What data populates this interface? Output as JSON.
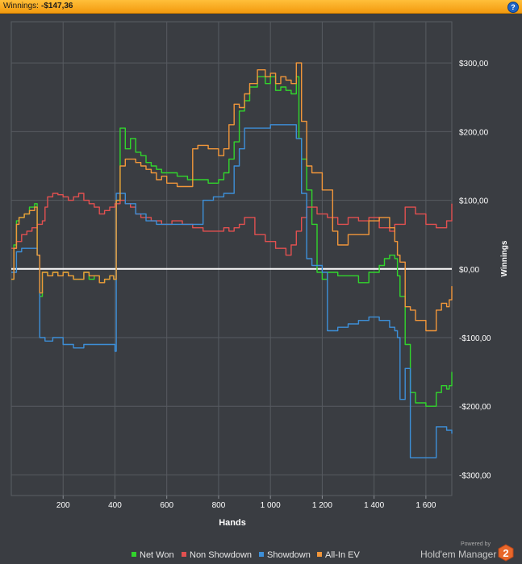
{
  "header": {
    "label": "Winnings:",
    "value": "-$147,36"
  },
  "help_icon": "question-mark-icon",
  "chart_data": {
    "type": "line",
    "xlabel": "Hands",
    "ylabel": "Winnings",
    "xlim": [
      0,
      1700
    ],
    "ylim": [
      -330,
      360
    ],
    "xticks": [
      200,
      400,
      600,
      800,
      1000,
      1200,
      1400,
      1600
    ],
    "xtick_labels": [
      "200",
      "400",
      "600",
      "800",
      "1 000",
      "1 200",
      "1 400",
      "1 600"
    ],
    "yticks": [
      300,
      200,
      100,
      0,
      -100,
      -200,
      -300
    ],
    "ytick_labels": [
      "$300,00",
      "$200,00",
      "$100,00",
      "$0,00",
      "-$100,00",
      "-$200,00",
      "-$300,00"
    ],
    "grid": true,
    "zero_line": true,
    "legend_position": "bottom",
    "series": [
      {
        "name": "Net Won",
        "color": "#31d52c",
        "x": [
          0,
          10,
          20,
          30,
          50,
          70,
          90,
          100,
          110,
          120,
          140,
          160,
          180,
          200,
          220,
          240,
          260,
          280,
          300,
          320,
          340,
          360,
          380,
          395,
          405,
          420,
          440,
          460,
          480,
          500,
          520,
          540,
          560,
          580,
          600,
          640,
          680,
          700,
          720,
          760,
          800,
          820,
          840,
          860,
          880,
          900,
          920,
          950,
          980,
          1000,
          1020,
          1040,
          1060,
          1080,
          1100,
          1110,
          1120,
          1140,
          1160,
          1180,
          1200,
          1220,
          1260,
          1300,
          1340,
          1380,
          1420,
          1440,
          1460,
          1480,
          1490,
          1500,
          1520,
          1540,
          1560,
          1600,
          1640,
          1660,
          1680,
          1690,
          1700
        ],
        "y": [
          -15,
          35,
          70,
          75,
          80,
          90,
          95,
          20,
          -40,
          -5,
          -10,
          -5,
          -10,
          -5,
          -10,
          -15,
          -15,
          -5,
          -15,
          -10,
          -20,
          -15,
          -10,
          -15,
          100,
          205,
          175,
          190,
          170,
          165,
          155,
          150,
          145,
          140,
          140,
          135,
          130,
          130,
          130,
          125,
          130,
          140,
          160,
          185,
          230,
          245,
          265,
          280,
          270,
          280,
          260,
          265,
          260,
          255,
          280,
          190,
          160,
          115,
          65,
          -5,
          -15,
          -5,
          -10,
          -10,
          -20,
          -5,
          5,
          15,
          20,
          15,
          -10,
          -40,
          -110,
          -180,
          -195,
          -200,
          -180,
          -170,
          -175,
          -170,
          -150
        ]
      },
      {
        "name": "Non Showdown",
        "color": "#e25050",
        "x": [
          0,
          20,
          40,
          60,
          80,
          100,
          120,
          130,
          140,
          160,
          180,
          200,
          220,
          240,
          260,
          280,
          300,
          320,
          340,
          360,
          380,
          400,
          420,
          440,
          460,
          480,
          500,
          540,
          580,
          620,
          660,
          700,
          740,
          780,
          820,
          840,
          860,
          880,
          900,
          940,
          980,
          1020,
          1060,
          1080,
          1100,
          1120,
          1140,
          1180,
          1220,
          1260,
          1300,
          1340,
          1380,
          1420,
          1460,
          1480,
          1520,
          1560,
          1600,
          1640,
          1680,
          1700
        ],
        "y": [
          30,
          40,
          50,
          55,
          60,
          65,
          70,
          90,
          105,
          110,
          108,
          105,
          100,
          105,
          110,
          100,
          95,
          90,
          80,
          85,
          90,
          95,
          100,
          95,
          90,
          80,
          75,
          70,
          65,
          70,
          65,
          60,
          55,
          55,
          60,
          55,
          60,
          65,
          75,
          50,
          40,
          30,
          20,
          35,
          55,
          75,
          90,
          80,
          75,
          65,
          75,
          70,
          75,
          60,
          55,
          65,
          90,
          80,
          65,
          60,
          70,
          95
        ]
      },
      {
        "name": "Showdown",
        "color": "#3d8fd8",
        "x": [
          0,
          20,
          40,
          80,
          100,
          110,
          130,
          160,
          200,
          240,
          280,
          320,
          360,
          390,
          400,
          405,
          440,
          480,
          520,
          560,
          600,
          640,
          680,
          700,
          740,
          780,
          820,
          840,
          860,
          880,
          900,
          940,
          980,
          1000,
          1040,
          1060,
          1080,
          1100,
          1120,
          1140,
          1160,
          1180,
          1200,
          1220,
          1260,
          1300,
          1340,
          1380,
          1420,
          1460,
          1480,
          1490,
          1500,
          1520,
          1540,
          1560,
          1600,
          1640,
          1660,
          1680,
          1700
        ],
        "y": [
          -5,
          25,
          30,
          30,
          20,
          -100,
          -105,
          -100,
          -110,
          -115,
          -110,
          -110,
          -110,
          -110,
          -120,
          110,
          95,
          80,
          70,
          65,
          65,
          65,
          65,
          65,
          100,
          105,
          110,
          110,
          150,
          175,
          205,
          205,
          205,
          210,
          210,
          210,
          210,
          190,
          110,
          15,
          5,
          5,
          -5,
          -90,
          -85,
          -80,
          -75,
          -70,
          -75,
          -85,
          -90,
          -100,
          -190,
          -145,
          -275,
          -275,
          -275,
          -230,
          -230,
          -235,
          -240
        ]
      },
      {
        "name": "All-In EV",
        "color": "#f1963a",
        "x": [
          0,
          10,
          20,
          30,
          50,
          70,
          90,
          100,
          110,
          120,
          140,
          160,
          180,
          200,
          220,
          240,
          260,
          280,
          300,
          320,
          340,
          360,
          380,
          395,
          405,
          420,
          440,
          460,
          480,
          500,
          520,
          540,
          560,
          580,
          600,
          640,
          680,
          700,
          720,
          760,
          800,
          820,
          840,
          860,
          880,
          900,
          920,
          950,
          980,
          1000,
          1020,
          1040,
          1060,
          1080,
          1100,
          1120,
          1140,
          1160,
          1200,
          1240,
          1260,
          1300,
          1340,
          1380,
          1420,
          1460,
          1480,
          1490,
          1500,
          1520,
          1540,
          1560,
          1580,
          1600,
          1640,
          1660,
          1680,
          1690,
          1700
        ],
        "y": [
          -15,
          30,
          65,
          75,
          80,
          85,
          90,
          20,
          -35,
          -5,
          -10,
          -5,
          -10,
          -5,
          -10,
          -15,
          -15,
          -5,
          -10,
          -10,
          -20,
          -15,
          -10,
          -15,
          100,
          150,
          160,
          160,
          155,
          150,
          145,
          140,
          130,
          135,
          125,
          120,
          120,
          175,
          180,
          175,
          165,
          175,
          210,
          240,
          235,
          255,
          270,
          290,
          280,
          285,
          270,
          280,
          275,
          270,
          300,
          215,
          150,
          140,
          115,
          55,
          35,
          50,
          50,
          70,
          75,
          60,
          40,
          20,
          10,
          -55,
          -60,
          -75,
          -75,
          -90,
          -60,
          -50,
          -55,
          -45,
          -25
        ]
      }
    ]
  },
  "legend": [
    {
      "label": "Net Won",
      "color": "#31d52c"
    },
    {
      "label": "Non Showdown",
      "color": "#e25050"
    },
    {
      "label": "Showdown",
      "color": "#3d8fd8"
    },
    {
      "label": "All-In EV",
      "color": "#f1963a"
    }
  ],
  "footer": {
    "powered_by": "Powered by",
    "brand": "Hold'em Manager",
    "logo_text": "2"
  }
}
